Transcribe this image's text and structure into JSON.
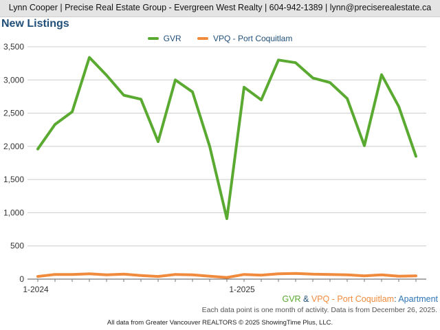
{
  "header": {
    "text": "Lynn Cooper | Precise Real Estate Group - Evergreen West Realty | 604-942-1389 | lynn@preciserealestate.ca"
  },
  "chart_title": "New Listings",
  "colors": {
    "gvr": "#5aaa32",
    "vpq": "#f08a3c",
    "title": "#1f4e79",
    "grid": "#cccccc"
  },
  "footer": {
    "series_gvr": "GVR",
    "amp": " & ",
    "series_vpq": "VPQ - Port Coquitlam",
    "colon": ": ",
    "property_type": "Apartment",
    "note": "Each data point is one month of activity. Data is from December 26, 2025.",
    "source": "All data from Greater Vancouver REALTORS © 2025 ShowingTime Plus, LLC."
  },
  "chart_data": {
    "type": "line",
    "title": "New Listings",
    "x_labels": [
      "1-2024",
      "1-2025"
    ],
    "ylim": [
      0,
      3500
    ],
    "yticks": [
      0,
      500,
      1000,
      1500,
      2000,
      2500,
      3000,
      3500
    ],
    "ytick_labels": [
      "0",
      "500",
      "1,000",
      "1,500",
      "2,000",
      "2,500",
      "3,000",
      "3,500"
    ],
    "grid": true,
    "legend_position": "top-center",
    "series": [
      {
        "name": "GVR",
        "color": "#5aaa32",
        "values": [
          1960,
          2330,
          2520,
          3340,
          3070,
          2770,
          2710,
          2070,
          3000,
          2820,
          2000,
          910,
          2890,
          2700,
          3300,
          3260,
          3030,
          2960,
          2720,
          2010,
          3080,
          2600,
          1850
        ]
      },
      {
        "name": "VPQ - Port Coquitlam",
        "color": "#f08a3c",
        "values": [
          40,
          70,
          70,
          80,
          65,
          75,
          55,
          40,
          70,
          65,
          45,
          25,
          70,
          60,
          80,
          85,
          75,
          70,
          65,
          50,
          65,
          45,
          50
        ]
      }
    ]
  }
}
